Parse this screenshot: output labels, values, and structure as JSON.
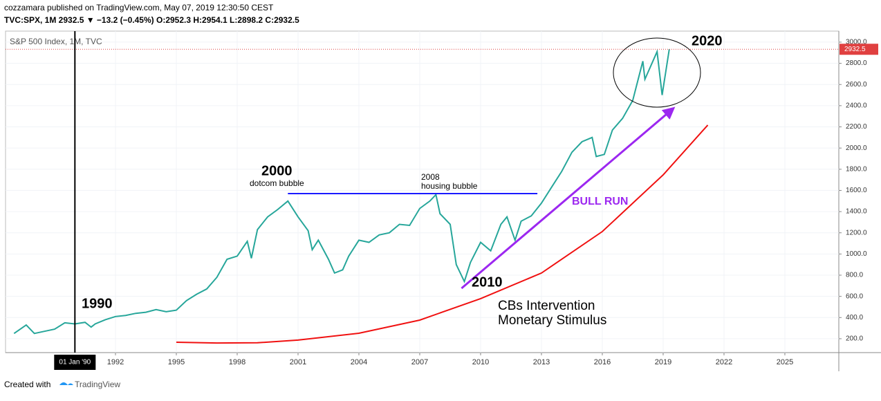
{
  "header": {
    "publisher": "cozzamara published on TradingView.com, May 07, 2019 12:30:50 CEST",
    "quote": "TVC:SPX, 1M 2932.5 ▼ −13.2 (−0.45%) O:2952.3 H:2954.1 L:2898.2 C:2932.5"
  },
  "chart_data": {
    "type": "line",
    "title": "S&P 500 Index, 1M, TVC",
    "xlim": [
      1986.58,
      2027.66
    ],
    "xticks": [
      1992,
      1995,
      1998,
      2001,
      2004,
      2007,
      2010,
      2013,
      2016,
      2019,
      2022,
      2025
    ],
    "ylim": [
      69,
      3104
    ],
    "yticks": [
      {
        "value": 200,
        "label": "200.0"
      },
      {
        "value": 400,
        "label": "400.0"
      },
      {
        "value": 600,
        "label": "600.0"
      },
      {
        "value": 800,
        "label": "800.0"
      },
      {
        "value": 1000,
        "label": "1000.0"
      },
      {
        "value": 1200,
        "label": "1200.0"
      },
      {
        "value": 1400,
        "label": "1400.0"
      },
      {
        "value": 1600,
        "label": "1600.0"
      },
      {
        "value": 1800,
        "label": "1800.0"
      },
      {
        "value": 2000,
        "label": "2000.0"
      },
      {
        "value": 2200,
        "label": "2200.0"
      },
      {
        "value": 2400,
        "label": "2400.0"
      },
      {
        "value": 2600,
        "label": "2600.0"
      },
      {
        "value": 2800,
        "label": "2800.0"
      },
      {
        "value": 3000,
        "label": "3000.0"
      }
    ],
    "grid": true,
    "last_price": {
      "value": 2932.5,
      "label": "2932.5"
    },
    "crosshair": {
      "value": 1990,
      "label": "01 Jan '90"
    },
    "series": [
      {
        "color": "#26a69a",
        "x": [
          1987.0,
          1987.6,
          1988.0,
          1988.5,
          1989.0,
          1989.5,
          1990.0,
          1990.5,
          1990.8,
          1991.0,
          1991.5,
          1992.0,
          1992.5,
          1993.0,
          1993.5,
          1994.0,
          1994.5,
          1995.0,
          1995.5,
          1996.0,
          1996.5,
          1997.0,
          1997.5,
          1998.0,
          1998.5,
          1998.7,
          1999.0,
          1999.5,
          2000.0,
          2000.5,
          2001.0,
          2001.5,
          2001.7,
          2002.0,
          2002.5,
          2002.8,
          2003.2,
          2003.5,
          2004.0,
          2004.5,
          2005.0,
          2005.5,
          2006.0,
          2006.5,
          2007.0,
          2007.5,
          2007.8,
          2008.0,
          2008.5,
          2008.8,
          2009.2,
          2009.5,
          2010.0,
          2010.5,
          2011.0,
          2011.3,
          2011.7,
          2012.0,
          2012.5,
          2013.0,
          2013.5,
          2014.0,
          2014.5,
          2015.0,
          2015.5,
          2015.7,
          2016.1,
          2016.5,
          2017.0,
          2017.5,
          2018.0,
          2018.1,
          2018.7,
          2018.95,
          2019.3
        ],
        "values": [
          250,
          330,
          250,
          270,
          290,
          350,
          340,
          355,
          310,
          340,
          380,
          410,
          420,
          440,
          450,
          475,
          455,
          470,
          560,
          620,
          670,
          780,
          950,
          980,
          1120,
          960,
          1230,
          1350,
          1420,
          1500,
          1350,
          1220,
          1040,
          1130,
          950,
          820,
          850,
          980,
          1130,
          1110,
          1180,
          1200,
          1280,
          1270,
          1430,
          1500,
          1560,
          1380,
          1280,
          900,
          740,
          920,
          1110,
          1030,
          1280,
          1350,
          1130,
          1310,
          1360,
          1480,
          1630,
          1780,
          1960,
          2060,
          2100,
          1920,
          1940,
          2170,
          2280,
          2450,
          2820,
          2650,
          2910,
          2500,
          2932.5
        ]
      },
      {
        "color": "#f01010",
        "x": [
          1995,
          1997,
          1999,
          2001,
          2004,
          2007,
          2010,
          2013,
          2016,
          2019,
          2021.2
        ],
        "values": [
          167,
          160,
          162,
          187,
          252,
          376,
          579,
          820,
          1212,
          1747,
          2217
        ]
      },
      {
        "color": "#1a1aff",
        "x": [
          2000.5,
          2012.8
        ],
        "values": [
          1570,
          1570
        ]
      },
      {
        "color": "#9c27f0",
        "x": [
          2009.06,
          2019.5
        ],
        "values": [
          676,
          2374
        ]
      }
    ],
    "annotations": {
      "a1990": "1990",
      "a2000": "2000",
      "dotcom": "dotcom bubble",
      "a2008": "2008",
      "housing": "housing bubble",
      "a2010": "2010",
      "a2020": "2020",
      "bull": "BULL RUN",
      "cb1": "CBs Intervention",
      "cb2": "Monetary Stimulus"
    }
  },
  "footer": {
    "created": "Created with",
    "brand": "TradingView"
  }
}
